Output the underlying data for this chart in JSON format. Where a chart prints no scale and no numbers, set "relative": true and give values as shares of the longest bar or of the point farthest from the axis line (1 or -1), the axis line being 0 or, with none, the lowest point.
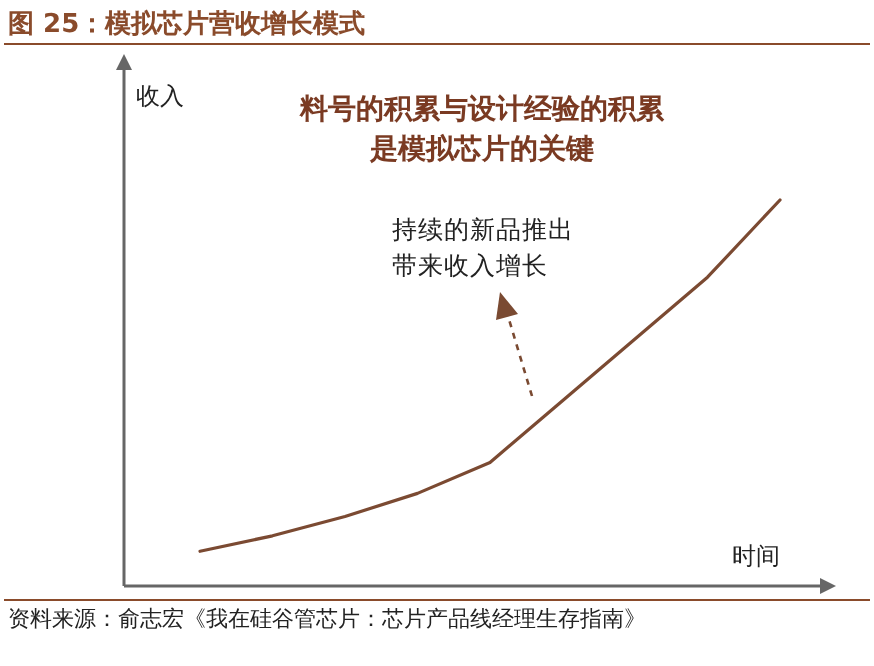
{
  "chart_data": {
    "type": "line",
    "title": "图 25：模拟芯片营收增长模式",
    "xlabel": "时间",
    "ylabel": "收入",
    "relative": true,
    "color": "#7b4a32",
    "categories": [
      null,
      null,
      null,
      null,
      null,
      null,
      null,
      null,
      null
    ],
    "values": [
      0.09,
      0.13,
      0.18,
      0.24,
      0.32,
      0.48,
      0.64,
      0.8,
      1.0
    ],
    "annotations": [
      "料号的积累与设计经验的积累是模拟芯片的关键",
      "持续的新品推出带来收入增长",
      "资料来源：俞志宏《我在硅谷管芯片：芯片产品线经理生存指南》"
    ]
  }
}
